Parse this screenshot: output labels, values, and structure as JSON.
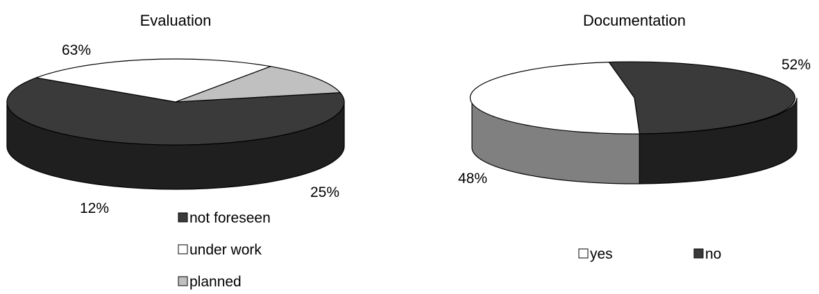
{
  "chart_data": [
    {
      "type": "pie",
      "title": "Evaluation",
      "slices": [
        {
          "label": "not foreseen",
          "value": 63,
          "color": "#3a3a3a",
          "side_color": "#1f1f1f",
          "display": "63%"
        },
        {
          "label": "under work",
          "value": 25,
          "color": "#ffffff",
          "side_color": "#808080",
          "display": "25%"
        },
        {
          "label": "planned",
          "value": 12,
          "color": "#c0c0c0",
          "side_color": "#606060",
          "display": "12%"
        }
      ],
      "legend": {
        "placement": "bottom",
        "orientation": "vertical"
      }
    },
    {
      "type": "pie",
      "title": "Documentation",
      "slices": [
        {
          "label": "yes",
          "value": 48,
          "color": "#ffffff",
          "side_color": "#808080",
          "display": "48%"
        },
        {
          "label": "no",
          "value": 52,
          "color": "#3a3a3a",
          "side_color": "#1f1f1f",
          "display": "52%"
        }
      ],
      "legend": {
        "placement": "bottom",
        "orientation": "horizontal"
      }
    }
  ]
}
